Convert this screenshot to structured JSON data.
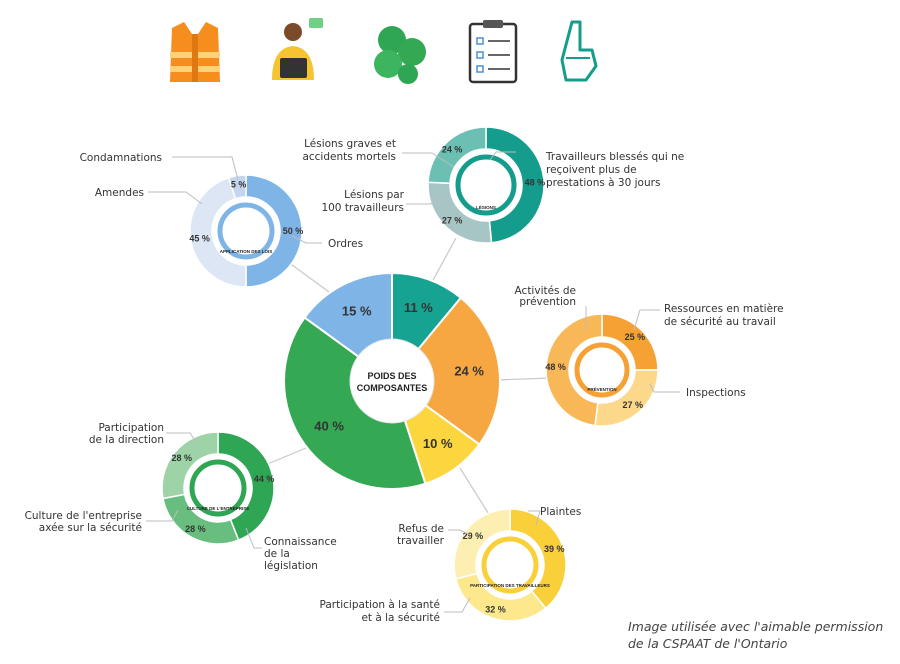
{
  "center": {
    "line1": "POIDS DES",
    "line2": "COMPOSANTES"
  },
  "chart_data": {
    "type": "pie",
    "categories": [
      "Lésions",
      "Prévention",
      "Participation des travailleurs",
      "Culture de l'entreprise",
      "Application des lois"
    ],
    "values": [
      11,
      24,
      10,
      40,
      15
    ],
    "colors": [
      "#17a392",
      "#f6a742",
      "#fbd63f",
      "#34a853",
      "#7fb5e6"
    ],
    "value_labels": [
      "11 %",
      "24 %",
      "10 %",
      "40 %",
      "15 %"
    ],
    "sub_charts": [
      {
        "name": "LÉSIONS",
        "labels": [
          "Travailleurs blessés qui ne reçoivent plus de prestations à 30 jours",
          "Lésions par 100 travailleurs",
          "Lésions graves et accidents mortels"
        ],
        "values": [
          48,
          27,
          24
        ],
        "value_labels": [
          "48 %",
          "27 %",
          "24 %"
        ],
        "colors": [
          "#149c8c",
          "#a8c5c6",
          "#6cc0b3"
        ]
      },
      {
        "name": "PRÉVENTION",
        "labels": [
          "Ressources en matière de sécurité au travail",
          "Inspections",
          "Activités de prévention"
        ],
        "values": [
          25,
          27,
          48
        ],
        "value_labels": [
          "25 %",
          "27 %",
          "48 %"
        ],
        "colors": [
          "#f6a133",
          "#fcd88a",
          "#f9b858"
        ]
      },
      {
        "name": "PARTICIPATION DES TRAVAILLEURS",
        "labels": [
          "Plaintes",
          "Participation à la santé et à la sécurité",
          "Refus de travailler"
        ],
        "values": [
          39,
          32,
          29
        ],
        "value_labels": [
          "39 %",
          "32 %",
          "29 %"
        ],
        "colors": [
          "#f9cf3a",
          "#fde88e",
          "#fcefb1"
        ]
      },
      {
        "name": "CULTURE DE L'ENTREPRISE",
        "labels": [
          "Connaissance de la législation",
          "Culture de l'entreprise axée sur la sécurité",
          "Participation de la direction"
        ],
        "values": [
          44,
          28,
          28
        ],
        "value_labels": [
          "44 %",
          "28 %",
          "28 %"
        ],
        "colors": [
          "#2ea653",
          "#67be7e",
          "#9ed3a8"
        ]
      },
      {
        "name": "APPLICATION DES LOIS",
        "labels": [
          "Ordres",
          "Amendes",
          "Condamnations"
        ],
        "values": [
          50,
          45,
          5
        ],
        "value_labels": [
          "50 %",
          "45 %",
          "5 %"
        ],
        "colors": [
          "#7fb5e6",
          "#dde6f4",
          "#c4d6ef"
        ]
      }
    ]
  },
  "callouts": {
    "lesions": [
      "Lésions graves et",
      "accidents mortels",
      "Lésions par",
      "100 travailleurs",
      "Travailleurs blessés qui ne",
      "reçoivent plus de",
      "prestations à 30 jours"
    ],
    "application": [
      "Condamnations",
      "Amendes",
      "Ordres"
    ],
    "prevention": [
      "Activités de",
      "prévention",
      "Ressources en matière",
      "de sécurité au travail",
      "Inspections"
    ],
    "culture": [
      "Participation",
      "de la direction",
      "Culture de l'entreprise",
      "axée sur la sécurité",
      "Connaissance",
      "de la",
      "législation"
    ],
    "participation": [
      "Plaintes",
      "Refus de",
      "travailler",
      "Participation à la santé",
      "et à la sécurité"
    ]
  },
  "top_icons": [
    "safety-vest-icon",
    "worker-laptop-icon",
    "puzzle-icon",
    "clipboard-checklist-icon",
    "raised-finger-hand-icon"
  ],
  "credit": {
    "line1": "Image utilisée avec l'aimable permission",
    "line2": "de la CSPAAT de l'Ontario"
  }
}
